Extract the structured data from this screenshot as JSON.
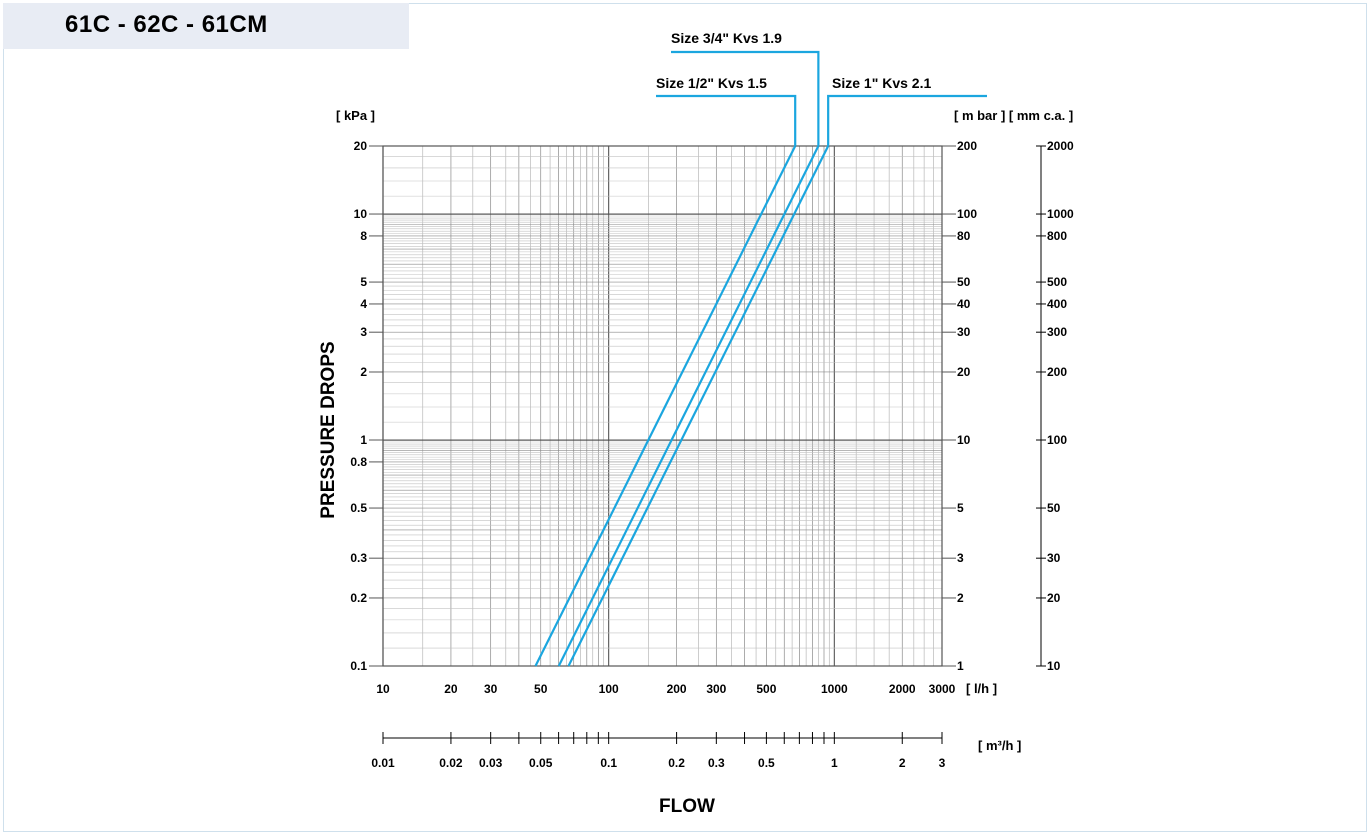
{
  "page": {
    "title": "61C - 62C - 61CM",
    "accent_color": "#1ba6df"
  },
  "chart_data": {
    "type": "line",
    "title": "61C - 62C - 61CM",
    "xlabel": "FLOW",
    "ylabel": "PRESSURE DROPS",
    "x_unit": "[ l/h ]",
    "x2_unit": "[ m³/h ]",
    "y_unit": "[ kPa ]",
    "y2_unit": "[ m bar ] [ mm c.a. ]",
    "x_scale": "log",
    "y_scale": "log",
    "xlim": [
      10,
      3000
    ],
    "ylim": [
      0.1,
      20
    ],
    "grid": true,
    "x_ticks": [
      {
        "value": 10,
        "label": "10"
      },
      {
        "value": 20,
        "label": "20"
      },
      {
        "value": 30,
        "label": "30"
      },
      {
        "value": 50,
        "label": "50"
      },
      {
        "value": 100,
        "label": "100"
      },
      {
        "value": 200,
        "label": "200"
      },
      {
        "value": 300,
        "label": "300"
      },
      {
        "value": 500,
        "label": "500"
      },
      {
        "value": 1000,
        "label": "1000"
      },
      {
        "value": 2000,
        "label": "2000"
      },
      {
        "value": 3000,
        "label": "3000"
      }
    ],
    "x2_ticks": [
      {
        "value": 0.01,
        "label": "0.01"
      },
      {
        "value": 0.02,
        "label": "0.02"
      },
      {
        "value": 0.03,
        "label": "0.03"
      },
      {
        "value": 0.05,
        "label": "0.05"
      },
      {
        "value": 0.1,
        "label": "0.1"
      },
      {
        "value": 0.2,
        "label": "0.2"
      },
      {
        "value": 0.3,
        "label": "0.3"
      },
      {
        "value": 0.5,
        "label": "0.5"
      },
      {
        "value": 1,
        "label": "1"
      },
      {
        "value": 2,
        "label": "2"
      },
      {
        "value": 3,
        "label": "3"
      }
    ],
    "x2_minor_ticks": [
      0.04,
      0.06,
      0.07,
      0.08,
      0.09,
      0.4,
      0.6,
      0.7,
      0.8,
      0.9
    ],
    "y_ticks": [
      {
        "value": 0.1,
        "label": "0.1"
      },
      {
        "value": 0.2,
        "label": "0.2"
      },
      {
        "value": 0.3,
        "label": "0.3"
      },
      {
        "value": 0.5,
        "label": "0.5"
      },
      {
        "value": 0.8,
        "label": "0.8"
      },
      {
        "value": 1,
        "label": "1"
      },
      {
        "value": 2,
        "label": "2"
      },
      {
        "value": 3,
        "label": "3"
      },
      {
        "value": 4,
        "label": "4"
      },
      {
        "value": 5,
        "label": "5"
      },
      {
        "value": 8,
        "label": "8"
      },
      {
        "value": 10,
        "label": "10"
      },
      {
        "value": 20,
        "label": "20"
      }
    ],
    "y2_ticks": [
      {
        "value": 0.1,
        "label": "1"
      },
      {
        "value": 0.2,
        "label": "2"
      },
      {
        "value": 0.3,
        "label": "3"
      },
      {
        "value": 0.5,
        "label": "5"
      },
      {
        "value": 1,
        "label": "10"
      },
      {
        "value": 2,
        "label": "20"
      },
      {
        "value": 3,
        "label": "30"
      },
      {
        "value": 4,
        "label": "40"
      },
      {
        "value": 5,
        "label": "50"
      },
      {
        "value": 8,
        "label": "80"
      },
      {
        "value": 10,
        "label": "100"
      },
      {
        "value": 20,
        "label": "200"
      }
    ],
    "y3_ticks": [
      {
        "value": 0.1,
        "label": "10"
      },
      {
        "value": 0.2,
        "label": "20"
      },
      {
        "value": 0.3,
        "label": "30"
      },
      {
        "value": 0.5,
        "label": "50"
      },
      {
        "value": 1,
        "label": "100"
      },
      {
        "value": 2,
        "label": "200"
      },
      {
        "value": 3,
        "label": "300"
      },
      {
        "value": 4,
        "label": "400"
      },
      {
        "value": 5,
        "label": "500"
      },
      {
        "value": 8,
        "label": "800"
      },
      {
        "value": 10,
        "label": "1000"
      },
      {
        "value": 20,
        "label": "2000"
      }
    ],
    "series": [
      {
        "name": "Size 1/2\" Kvs 1.5",
        "kvs": 1.5,
        "color": "#1ba6df",
        "x": [
          47.4,
          670.8
        ],
        "y": [
          0.1,
          20
        ]
      },
      {
        "name": "Size 3/4\" Kvs 1.9",
        "kvs": 1.9,
        "color": "#1ba6df",
        "x": [
          60.1,
          849.7
        ],
        "y": [
          0.1,
          20
        ]
      },
      {
        "name": "Size 1\" Kvs 2.1",
        "kvs": 2.1,
        "color": "#1ba6df",
        "x": [
          66.4,
          939.1
        ],
        "y": [
          0.1,
          20
        ]
      }
    ]
  }
}
